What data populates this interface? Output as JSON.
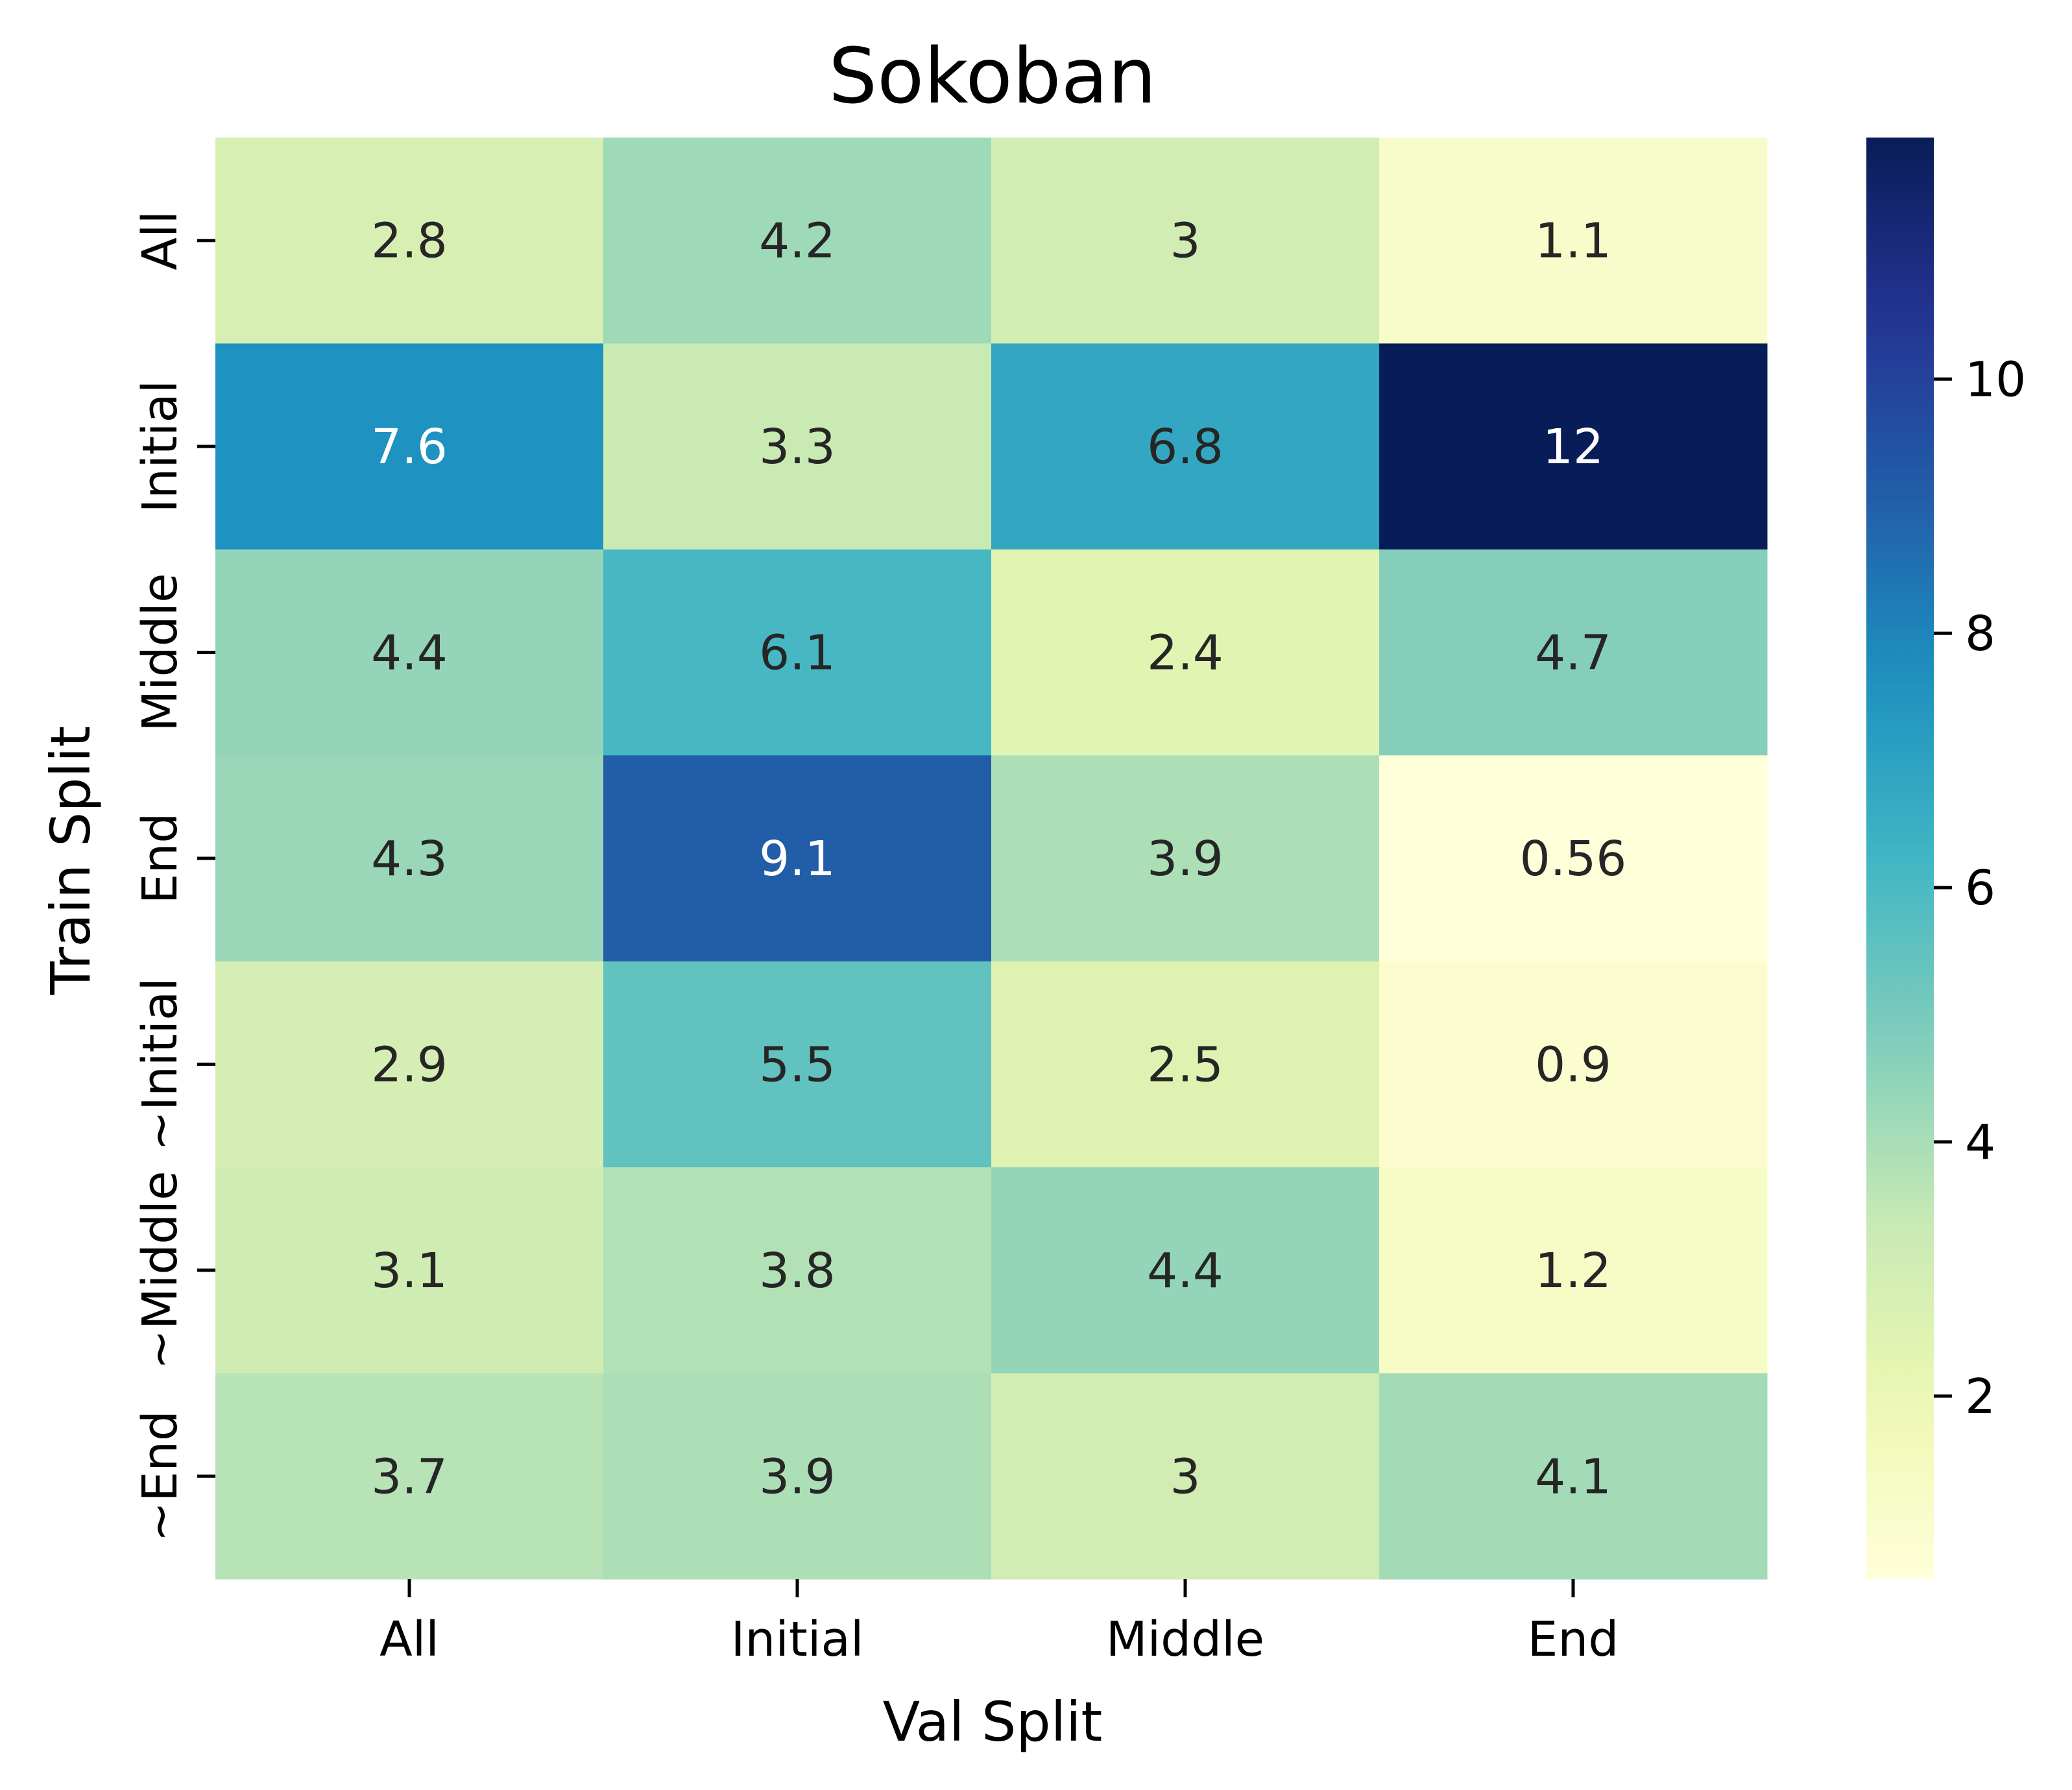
{
  "chart_data": {
    "type": "heatmap",
    "title": "Sokoban",
    "xlabel": "Val Split",
    "ylabel": "Train Split",
    "x_categories": [
      "All",
      "Initial",
      "Middle",
      "End"
    ],
    "y_categories": [
      "All",
      "Initial",
      "Middle",
      "End",
      "~Initial",
      "~Middle",
      "~End"
    ],
    "values": [
      [
        2.8,
        4.2,
        3,
        1.1
      ],
      [
        7.6,
        3.3,
        6.8,
        12
      ],
      [
        4.4,
        6.1,
        2.4,
        4.7
      ],
      [
        4.3,
        9.1,
        3.9,
        0.56
      ],
      [
        2.9,
        5.5,
        2.5,
        0.9
      ],
      [
        3.1,
        3.8,
        4.4,
        1.2
      ],
      [
        3.7,
        3.9,
        3,
        4.1
      ]
    ],
    "colormap": "YlGnBu",
    "colorbar": {
      "range": [
        0.56,
        11.9
      ],
      "ticks": [
        2,
        4,
        6,
        8,
        10
      ]
    },
    "annotation_colors": {
      "dark": "#262626",
      "light": "#ffffff"
    }
  }
}
